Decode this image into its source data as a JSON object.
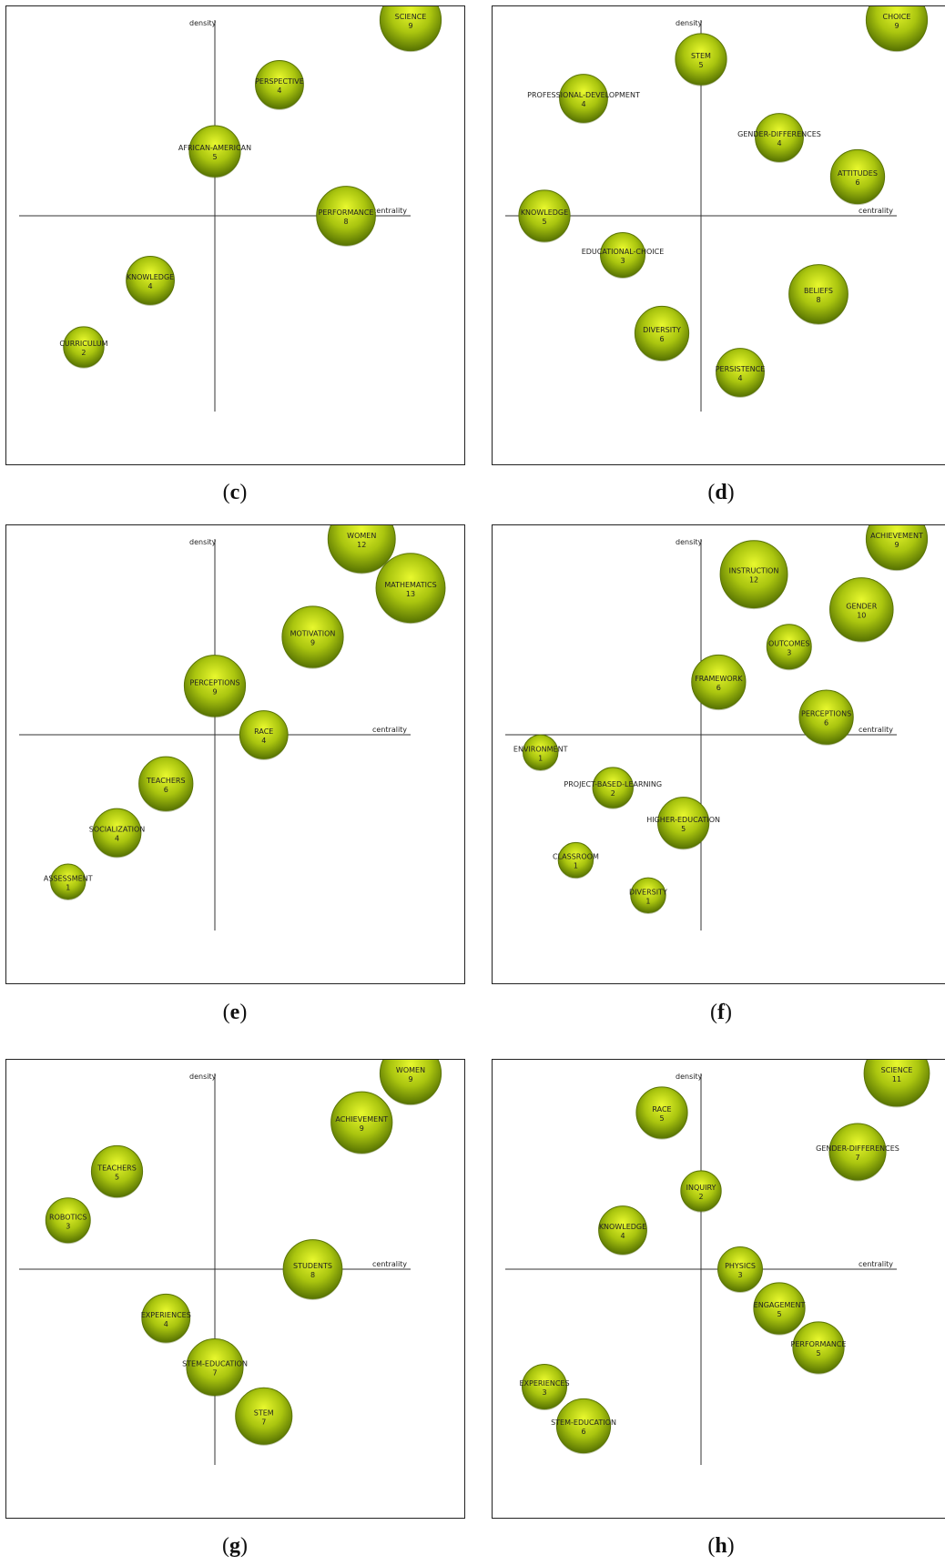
{
  "colors": {
    "bubble_light": "#e4f52a",
    "bubble_mid": "#a9c40e",
    "bubble_dark": "#5e7a03",
    "axis": "#333333"
  },
  "chart_data": [
    {
      "id": "c",
      "caption": "c",
      "type": "scatter",
      "xlabel": "centrality",
      "ylabel": "density",
      "xlim": [
        -10,
        10
      ],
      "ylim": [
        -10,
        10
      ],
      "points": [
        {
          "label": "SCIENCE",
          "count": 9,
          "x": 10,
          "y": 10
        },
        {
          "label": "PERSPECTIVE",
          "count": 4,
          "x": 3.3,
          "y": 6.7
        },
        {
          "label": "AFRICAN-AMERICAN",
          "count": 5,
          "x": 0,
          "y": 3.3
        },
        {
          "label": "PERFORMANCE",
          "count": 8,
          "x": 6.7,
          "y": 0
        },
        {
          "label": "KNOWLEDGE",
          "count": 4,
          "x": -3.3,
          "y": -3.3
        },
        {
          "label": "CURRICULUM",
          "count": 2,
          "x": -6.7,
          "y": -6.7
        }
      ]
    },
    {
      "id": "d",
      "caption": "d",
      "type": "scatter",
      "xlabel": "centrality",
      "ylabel": "density",
      "xlim": [
        -10,
        10
      ],
      "ylim": [
        -10,
        10
      ],
      "points": [
        {
          "label": "CHOICE",
          "count": 9,
          "x": 10,
          "y": 10
        },
        {
          "label": "STEM",
          "count": 5,
          "x": 0,
          "y": 8
        },
        {
          "label": "PROFESSIONAL-DEVELOPMENT",
          "count": 4,
          "x": -6,
          "y": 6
        },
        {
          "label": "GENDER-DIFFERENCES",
          "count": 4,
          "x": 4,
          "y": 4
        },
        {
          "label": "ATTITUDES",
          "count": 6,
          "x": 8,
          "y": 2
        },
        {
          "label": "KNOWLEDGE",
          "count": 5,
          "x": -8,
          "y": 0
        },
        {
          "label": "EDUCATIONAL-CHOICE",
          "count": 3,
          "x": -4,
          "y": -2
        },
        {
          "label": "BELIEFS",
          "count": 8,
          "x": 6,
          "y": -4
        },
        {
          "label": "DIVERSITY",
          "count": 6,
          "x": -2,
          "y": -6
        },
        {
          "label": "PERSISTENCE",
          "count": 4,
          "x": 2,
          "y": -8
        }
      ]
    },
    {
      "id": "e",
      "caption": "e",
      "type": "scatter",
      "xlabel": "centrality",
      "ylabel": "density",
      "xlim": [
        -10,
        10
      ],
      "ylim": [
        -10,
        10
      ],
      "points": [
        {
          "label": "WOMEN",
          "count": 12,
          "x": 7.5,
          "y": 10
        },
        {
          "label": "MATHEMATICS",
          "count": 13,
          "x": 10,
          "y": 7.5
        },
        {
          "label": "MOTIVATION",
          "count": 9,
          "x": 5,
          "y": 5
        },
        {
          "label": "PERCEPTIONS",
          "count": 9,
          "x": 0,
          "y": 2.5
        },
        {
          "label": "RACE",
          "count": 4,
          "x": 2.5,
          "y": 0
        },
        {
          "label": "TEACHERS",
          "count": 6,
          "x": -2.5,
          "y": -2.5
        },
        {
          "label": "SOCIALIZATION",
          "count": 4,
          "x": -5,
          "y": -5
        },
        {
          "label": "ASSESSMENT",
          "count": 1,
          "x": -7.5,
          "y": -7.5
        }
      ]
    },
    {
      "id": "f",
      "caption": "f",
      "type": "scatter",
      "xlabel": "centrality",
      "ylabel": "density",
      "xlim": [
        -10,
        10
      ],
      "ylim": [
        -10,
        10
      ],
      "points": [
        {
          "label": "ACHIEVEMENT",
          "count": 9,
          "x": 10,
          "y": 10
        },
        {
          "label": "INSTRUCTION",
          "count": 12,
          "x": 2.7,
          "y": 8.2
        },
        {
          "label": "GENDER",
          "count": 10,
          "x": 8.2,
          "y": 6.4
        },
        {
          "label": "OUTCOMES",
          "count": 3,
          "x": 4.5,
          "y": 4.5
        },
        {
          "label": "FRAMEWORK",
          "count": 6,
          "x": 0.9,
          "y": 2.7
        },
        {
          "label": "PERCEPTIONS",
          "count": 6,
          "x": 6.4,
          "y": 0.9
        },
        {
          "label": "ENVIRONMENT",
          "count": 1,
          "x": -8.2,
          "y": -0.9
        },
        {
          "label": "PROJECT-BASED-LEARNING",
          "count": 2,
          "x": -4.5,
          "y": -2.7
        },
        {
          "label": "HIGHER-EDUCATION",
          "count": 5,
          "x": -0.9,
          "y": -4.5
        },
        {
          "label": "CLASSROOM",
          "count": 1,
          "x": -6.4,
          "y": -6.4
        },
        {
          "label": "DIVERSITY",
          "count": 1,
          "x": -2.7,
          "y": -8.2
        }
      ]
    },
    {
      "id": "g",
      "caption": "g",
      "type": "scatter",
      "xlabel": "centrality",
      "ylabel": "density",
      "xlim": [
        -10,
        10
      ],
      "ylim": [
        -10,
        10
      ],
      "points": [
        {
          "label": "WOMEN",
          "count": 9,
          "x": 10,
          "y": 10
        },
        {
          "label": "ACHIEVEMENT",
          "count": 9,
          "x": 7.5,
          "y": 7.5
        },
        {
          "label": "TEACHERS",
          "count": 5,
          "x": -5,
          "y": 5
        },
        {
          "label": "ROBOTICS",
          "count": 3,
          "x": -7.5,
          "y": 2.5
        },
        {
          "label": "STUDENTS",
          "count": 8,
          "x": 5,
          "y": 0
        },
        {
          "label": "EXPERIENCES",
          "count": 4,
          "x": -2.5,
          "y": -2.5
        },
        {
          "label": "STEM-EDUCATION",
          "count": 7,
          "x": 0,
          "y": -5
        },
        {
          "label": "STEM",
          "count": 7,
          "x": 2.5,
          "y": -7.5
        }
      ]
    },
    {
      "id": "h",
      "caption": "h",
      "type": "scatter",
      "xlabel": "centrality",
      "ylabel": "density",
      "xlim": [
        -10,
        10
      ],
      "ylim": [
        -10,
        10
      ],
      "points": [
        {
          "label": "SCIENCE",
          "count": 11,
          "x": 10,
          "y": 10
        },
        {
          "label": "RACE",
          "count": 5,
          "x": -2,
          "y": 8
        },
        {
          "label": "GENDER-DIFFERENCES",
          "count": 7,
          "x": 8,
          "y": 6
        },
        {
          "label": "INQUIRY",
          "count": 2,
          "x": 0,
          "y": 4
        },
        {
          "label": "KNOWLEDGE",
          "count": 4,
          "x": -4,
          "y": 2
        },
        {
          "label": "PHYSICS",
          "count": 3,
          "x": 2,
          "y": 0
        },
        {
          "label": "ENGAGEMENT",
          "count": 5,
          "x": 4,
          "y": -2
        },
        {
          "label": "PERFORMANCE",
          "count": 5,
          "x": 6,
          "y": -4
        },
        {
          "label": "EXPERIENCES",
          "count": 3,
          "x": -8,
          "y": -6
        },
        {
          "label": "STEM-EDUCATION",
          "count": 6,
          "x": -6,
          "y": -8
        }
      ]
    }
  ]
}
